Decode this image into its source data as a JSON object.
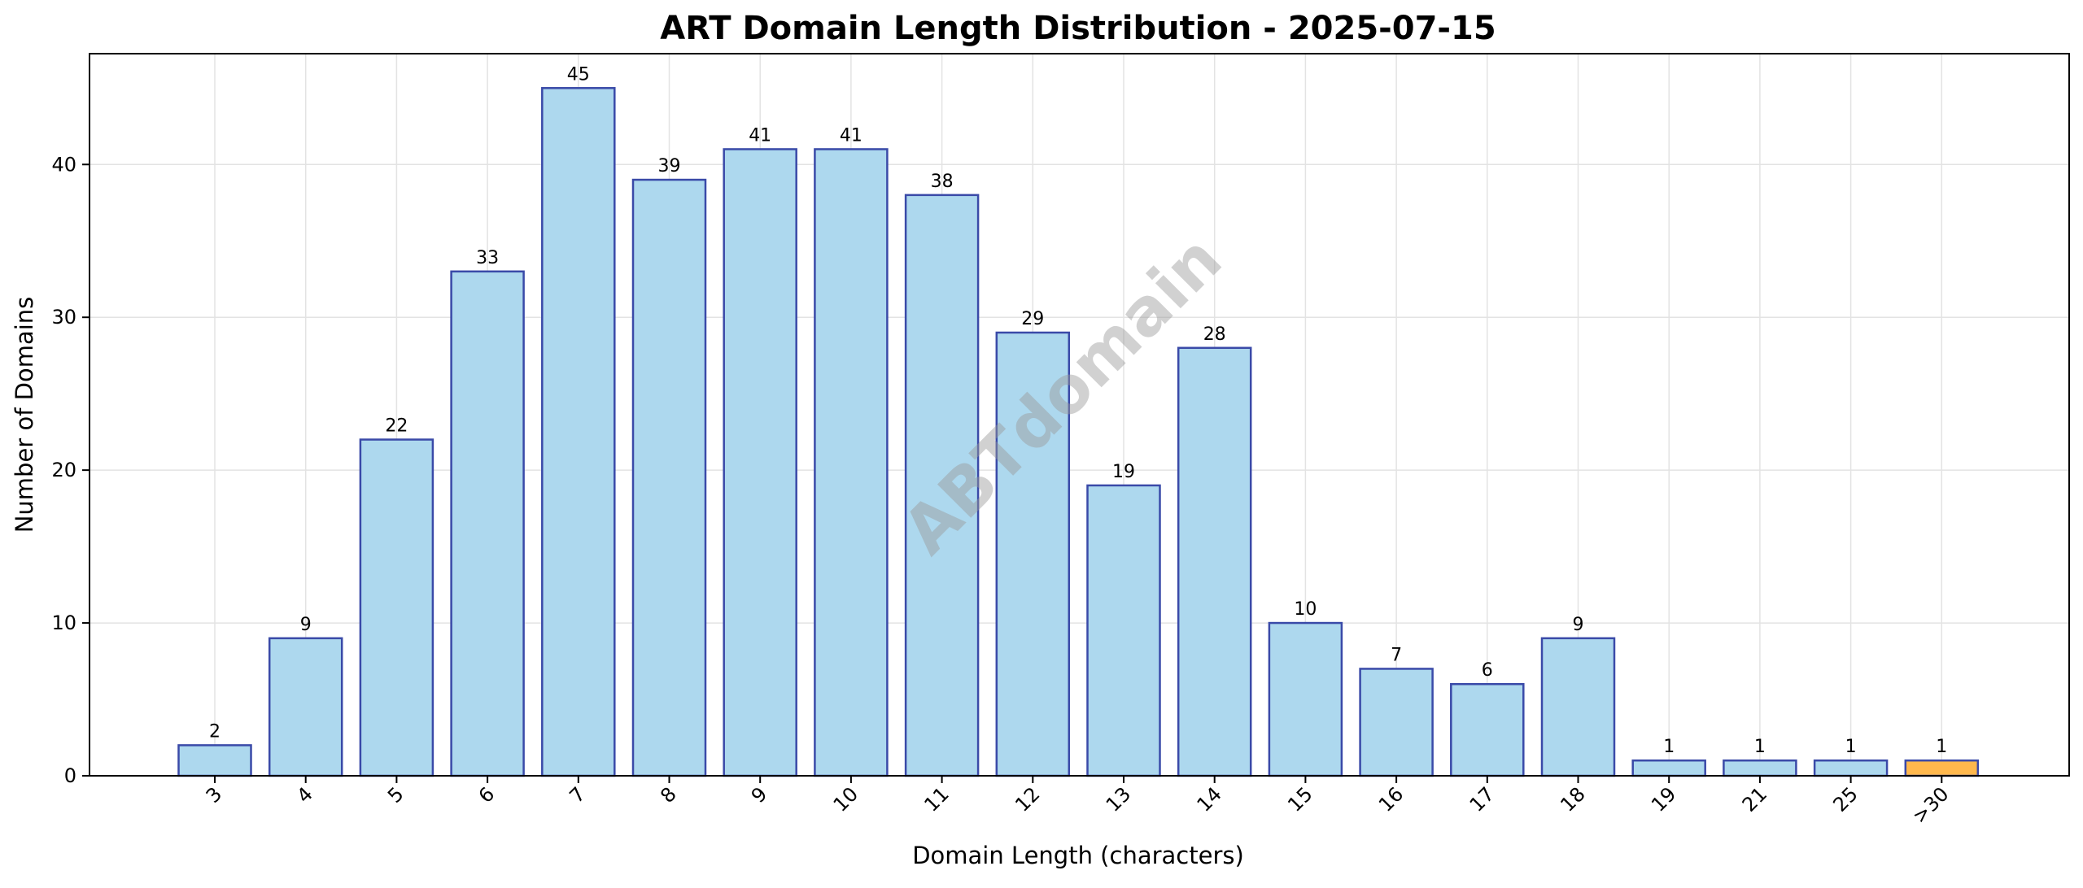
{
  "chart_data": {
    "type": "bar",
    "title": "ART Domain Length Distribution - 2025-07-15",
    "xlabel": "Domain Length (characters)",
    "ylabel": "Number of Domains",
    "categories": [
      "3",
      "4",
      "5",
      "6",
      "7",
      "8",
      "9",
      "10",
      "11",
      "12",
      "13",
      "14",
      "15",
      "16",
      "17",
      "18",
      "19",
      "21",
      "25",
      ">30"
    ],
    "values": [
      2,
      9,
      22,
      33,
      45,
      39,
      41,
      41,
      38,
      29,
      19,
      28,
      10,
      7,
      6,
      9,
      1,
      1,
      1,
      1
    ],
    "ylim": [
      0,
      47.25
    ],
    "yticks": [
      0,
      10,
      20,
      30,
      40
    ],
    "grid": true,
    "colors": {
      "bar_fill": "#add8ee",
      "bar_edge": "#3a4aa8",
      "highlight_fill": "#ffb84d",
      "grid": "#e3e3e3"
    },
    "highlight_categories": [
      ">30"
    ],
    "watermark": "ABTdomain"
  }
}
